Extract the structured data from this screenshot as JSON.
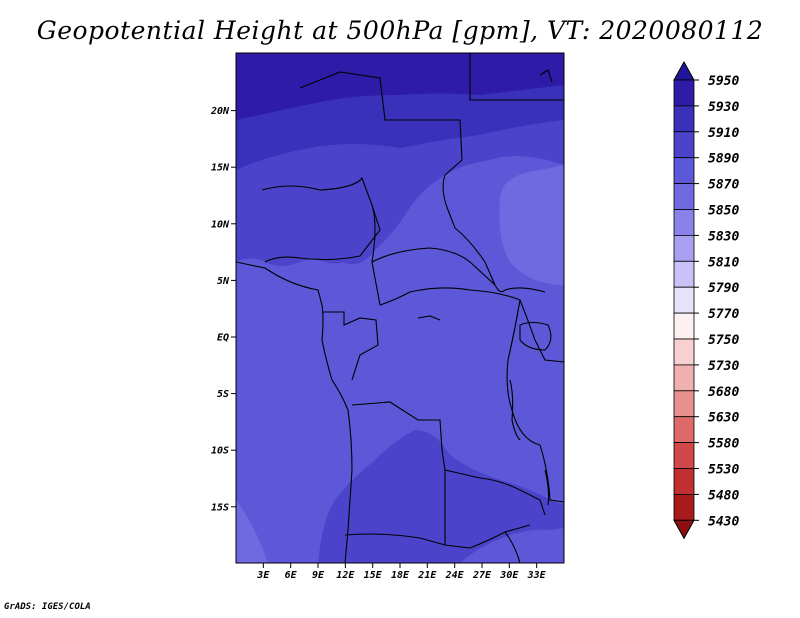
{
  "title": "Geopotential Height at 500hPa [gpm], VT: 2020080112",
  "credit": "GrADS: IGES/COLA",
  "lat_labels": [
    "20N",
    "15N",
    "10N",
    "5N",
    "EQ",
    "5S",
    "10S",
    "15S"
  ],
  "lat_values": [
    20,
    15,
    10,
    5,
    0,
    -5,
    -10,
    -15
  ],
  "lon_labels": [
    "3E",
    "6E",
    "9E",
    "12E",
    "15E",
    "18E",
    "21E",
    "24E",
    "27E",
    "30E",
    "33E"
  ],
  "lon_values": [
    3,
    6,
    9,
    12,
    15,
    18,
    21,
    24,
    27,
    30,
    33
  ],
  "colorbar": {
    "levels": [
      "5950",
      "5930",
      "5910",
      "5890",
      "5870",
      "5850",
      "5830",
      "5810",
      "5790",
      "5770",
      "5750",
      "5730",
      "5680",
      "5630",
      "5580",
      "5530",
      "5480",
      "5430"
    ],
    "colors": [
      "#21159a",
      "#2e1ba8",
      "#3a31bb",
      "#4b44cb",
      "#5c58d7",
      "#6f6ae0",
      "#8a82ea",
      "#a9a0f2",
      "#c8c2f8",
      "#e6e3fb",
      "#fdf0f0",
      "#f8d0d0",
      "#f0b0b0",
      "#e89090",
      "#de6a6a",
      "#d14848",
      "#c03030",
      "#a81b1b",
      "#8c1010"
    ]
  },
  "map_colors": {
    "c5930": "#2e1ba8",
    "c5910": "#3a31bb",
    "c5890": "#4b44cb",
    "c5870": "#5c58d7",
    "c5850": "#6f6ae0",
    "c5830": "#8a82ea"
  }
}
